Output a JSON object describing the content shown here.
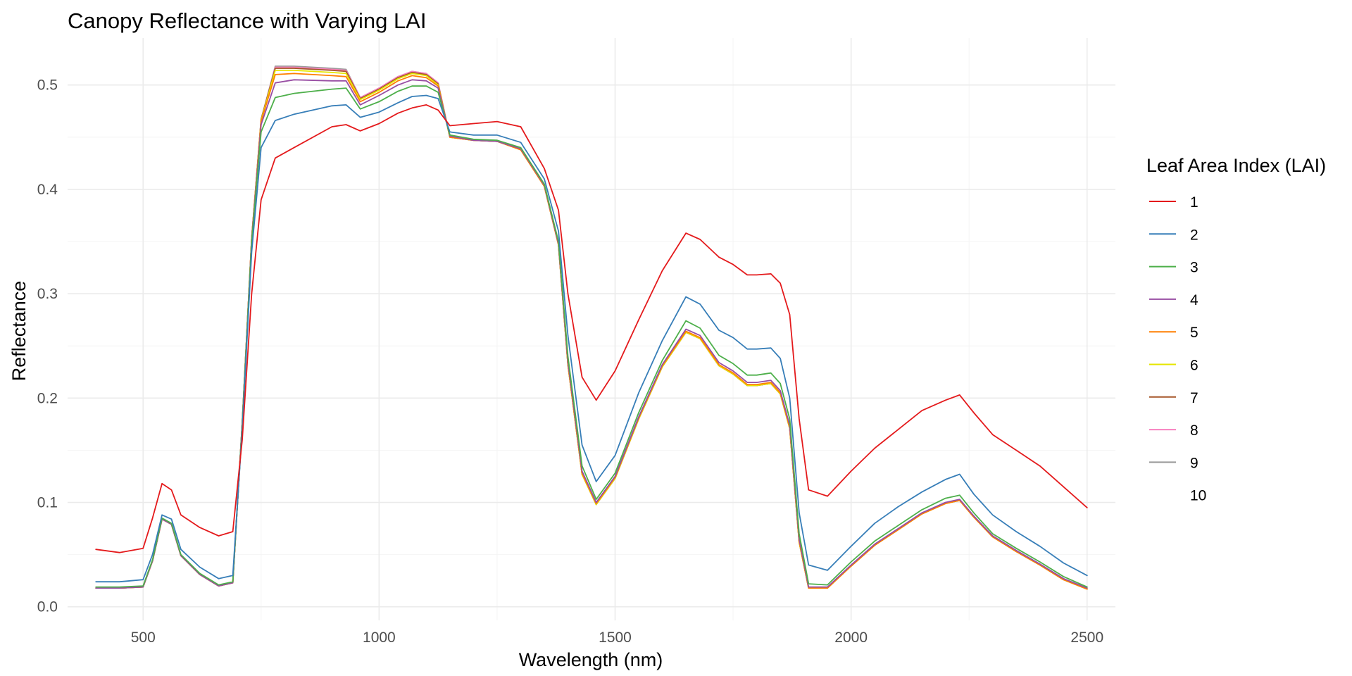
{
  "chart_data": {
    "type": "line",
    "title": "Canopy Reflectance with Varying LAI",
    "xlabel": "Wavelength (nm)",
    "ylabel": "Reflectance",
    "xlim": [
      340,
      2560
    ],
    "ylim": [
      -0.013,
      0.545
    ],
    "x_ticks": [
      500,
      1000,
      1500,
      2000,
      2500
    ],
    "x_tick_labels": [
      "500",
      "1000",
      "1500",
      "2000",
      "2500"
    ],
    "x_minor_ticks": [
      750,
      1250,
      1750,
      2250
    ],
    "y_ticks": [
      0.0,
      0.1,
      0.2,
      0.3,
      0.4,
      0.5
    ],
    "y_tick_labels": [
      "0.0",
      "0.1",
      "0.2",
      "0.3",
      "0.4",
      "0.5"
    ],
    "y_minor_ticks": [
      0.05,
      0.15,
      0.25,
      0.35,
      0.45
    ],
    "grid": true,
    "legend": {
      "title": "Leaf Area Index (LAI)",
      "position": "right"
    },
    "x": [
      400,
      450,
      500,
      520,
      540,
      560,
      580,
      620,
      660,
      690,
      710,
      730,
      750,
      780,
      820,
      900,
      930,
      960,
      1000,
      1040,
      1070,
      1100,
      1125,
      1150,
      1200,
      1250,
      1300,
      1350,
      1380,
      1400,
      1430,
      1460,
      1500,
      1550,
      1600,
      1650,
      1680,
      1720,
      1750,
      1780,
      1800,
      1830,
      1850,
      1870,
      1890,
      1910,
      1950,
      2000,
      2050,
      2100,
      2150,
      2200,
      2230,
      2260,
      2300,
      2350,
      2400,
      2450,
      2500
    ],
    "series": [
      {
        "name": "1",
        "color": "#e41a1c",
        "values": [
          0.055,
          0.052,
          0.056,
          0.085,
          0.118,
          0.112,
          0.088,
          0.076,
          0.068,
          0.072,
          0.16,
          0.3,
          0.39,
          0.43,
          0.44,
          0.46,
          0.462,
          0.456,
          0.463,
          0.473,
          0.478,
          0.481,
          0.476,
          0.461,
          0.463,
          0.465,
          0.46,
          0.42,
          0.38,
          0.3,
          0.22,
          0.198,
          0.226,
          0.275,
          0.322,
          0.358,
          0.352,
          0.335,
          0.328,
          0.318,
          0.318,
          0.319,
          0.31,
          0.28,
          0.18,
          0.112,
          0.106,
          0.13,
          0.152,
          0.17,
          0.188,
          0.198,
          0.203,
          0.186,
          0.165,
          0.15,
          0.135,
          0.115,
          0.095
        ]
      },
      {
        "name": "2",
        "color": "#377eb8",
        "values": [
          0.024,
          0.024,
          0.026,
          0.05,
          0.088,
          0.084,
          0.055,
          0.038,
          0.027,
          0.03,
          0.17,
          0.34,
          0.44,
          0.466,
          0.472,
          0.48,
          0.481,
          0.469,
          0.474,
          0.483,
          0.489,
          0.49,
          0.487,
          0.455,
          0.452,
          0.452,
          0.445,
          0.41,
          0.36,
          0.26,
          0.155,
          0.12,
          0.145,
          0.205,
          0.255,
          0.297,
          0.29,
          0.265,
          0.258,
          0.247,
          0.247,
          0.248,
          0.238,
          0.2,
          0.09,
          0.04,
          0.035,
          0.058,
          0.08,
          0.096,
          0.11,
          0.122,
          0.127,
          0.108,
          0.088,
          0.072,
          0.058,
          0.042,
          0.03
        ]
      },
      {
        "name": "3",
        "color": "#4daf4a",
        "values": [
          0.019,
          0.019,
          0.02,
          0.045,
          0.085,
          0.08,
          0.05,
          0.032,
          0.021,
          0.024,
          0.175,
          0.35,
          0.455,
          0.488,
          0.492,
          0.496,
          0.497,
          0.477,
          0.484,
          0.494,
          0.499,
          0.499,
          0.493,
          0.452,
          0.448,
          0.447,
          0.44,
          0.405,
          0.35,
          0.24,
          0.135,
          0.103,
          0.128,
          0.186,
          0.236,
          0.274,
          0.267,
          0.241,
          0.233,
          0.222,
          0.222,
          0.224,
          0.214,
          0.18,
          0.07,
          0.022,
          0.021,
          0.043,
          0.063,
          0.078,
          0.093,
          0.104,
          0.107,
          0.09,
          0.07,
          0.056,
          0.043,
          0.029,
          0.019
        ]
      },
      {
        "name": "4",
        "color": "#984ea3",
        "values": [
          0.018,
          0.018,
          0.019,
          0.044,
          0.084,
          0.079,
          0.049,
          0.031,
          0.02,
          0.023,
          0.176,
          0.352,
          0.462,
          0.502,
          0.505,
          0.504,
          0.504,
          0.481,
          0.49,
          0.5,
          0.505,
          0.504,
          0.497,
          0.451,
          0.447,
          0.446,
          0.439,
          0.404,
          0.348,
          0.235,
          0.13,
          0.1,
          0.125,
          0.182,
          0.232,
          0.266,
          0.26,
          0.234,
          0.226,
          0.215,
          0.215,
          0.217,
          0.207,
          0.174,
          0.065,
          0.019,
          0.019,
          0.04,
          0.06,
          0.075,
          0.09,
          0.1,
          0.103,
          0.087,
          0.068,
          0.054,
          0.041,
          0.027,
          0.018
        ]
      },
      {
        "name": "5",
        "color": "#ff7f00",
        "values": [
          0.018,
          0.018,
          0.019,
          0.044,
          0.084,
          0.079,
          0.049,
          0.031,
          0.02,
          0.023,
          0.176,
          0.353,
          0.465,
          0.51,
          0.511,
          0.509,
          0.508,
          0.484,
          0.493,
          0.504,
          0.509,
          0.507,
          0.499,
          0.45,
          0.447,
          0.446,
          0.438,
          0.403,
          0.347,
          0.233,
          0.128,
          0.099,
          0.124,
          0.181,
          0.231,
          0.264,
          0.258,
          0.232,
          0.224,
          0.213,
          0.213,
          0.215,
          0.205,
          0.172,
          0.063,
          0.018,
          0.018,
          0.039,
          0.059,
          0.074,
          0.089,
          0.099,
          0.102,
          0.086,
          0.067,
          0.053,
          0.04,
          0.026,
          0.017
        ]
      },
      {
        "name": "6",
        "color": "#e6e600",
        "values": [
          0.018,
          0.018,
          0.019,
          0.044,
          0.084,
          0.079,
          0.049,
          0.031,
          0.02,
          0.023,
          0.176,
          0.353,
          0.466,
          0.514,
          0.514,
          0.512,
          0.511,
          0.486,
          0.495,
          0.506,
          0.511,
          0.509,
          0.5,
          0.45,
          0.447,
          0.446,
          0.438,
          0.403,
          0.347,
          0.232,
          0.127,
          0.098,
          0.123,
          0.18,
          0.23,
          0.263,
          0.257,
          0.231,
          0.223,
          0.212,
          0.212,
          0.214,
          0.204,
          0.171,
          0.062,
          0.018,
          0.018,
          0.039,
          0.059,
          0.074,
          0.089,
          0.099,
          0.102,
          0.086,
          0.067,
          0.053,
          0.04,
          0.026,
          0.017
        ]
      },
      {
        "name": "7",
        "color": "#a65628",
        "values": [
          0.018,
          0.018,
          0.019,
          0.044,
          0.084,
          0.079,
          0.049,
          0.031,
          0.02,
          0.023,
          0.176,
          0.353,
          0.467,
          0.516,
          0.516,
          0.514,
          0.513,
          0.487,
          0.496,
          0.507,
          0.512,
          0.51,
          0.501,
          0.45,
          0.447,
          0.446,
          0.438,
          0.403,
          0.347,
          0.232,
          0.127,
          0.098,
          0.123,
          0.18,
          0.23,
          0.263,
          0.257,
          0.231,
          0.223,
          0.212,
          0.212,
          0.214,
          0.204,
          0.171,
          0.062,
          0.018,
          0.018,
          0.039,
          0.059,
          0.074,
          0.089,
          0.099,
          0.102,
          0.086,
          0.067,
          0.053,
          0.04,
          0.026,
          0.017
        ]
      },
      {
        "name": "8",
        "color": "#f781bf",
        "values": [
          0.018,
          0.018,
          0.019,
          0.044,
          0.084,
          0.079,
          0.049,
          0.031,
          0.02,
          0.023,
          0.176,
          0.353,
          0.467,
          0.517,
          0.517,
          0.515,
          0.514,
          0.488,
          0.497,
          0.508,
          0.513,
          0.511,
          0.502,
          0.45,
          0.447,
          0.446,
          0.438,
          0.403,
          0.347,
          0.232,
          0.127,
          0.098,
          0.123,
          0.18,
          0.23,
          0.263,
          0.257,
          0.231,
          0.223,
          0.212,
          0.212,
          0.214,
          0.204,
          0.171,
          0.062,
          0.018,
          0.018,
          0.039,
          0.059,
          0.074,
          0.089,
          0.099,
          0.102,
          0.086,
          0.067,
          0.053,
          0.04,
          0.026,
          0.017
        ]
      },
      {
        "name": "9",
        "color": "#999999",
        "values": [
          0.018,
          0.018,
          0.019,
          0.044,
          0.084,
          0.079,
          0.049,
          0.031,
          0.02,
          0.023,
          0.176,
          0.353,
          0.467,
          0.518,
          0.518,
          0.516,
          0.515,
          0.488,
          0.497,
          0.508,
          0.513,
          0.511,
          0.502,
          0.45,
          0.447,
          0.446,
          0.438,
          0.403,
          0.347,
          0.232,
          0.127,
          0.098,
          0.123,
          0.18,
          0.23,
          0.263,
          0.257,
          0.231,
          0.223,
          0.212,
          0.212,
          0.214,
          0.204,
          0.171,
          0.062,
          0.018,
          0.018,
          0.039,
          0.059,
          0.074,
          0.089,
          0.099,
          0.102,
          0.086,
          0.067,
          0.053,
          0.04,
          0.026,
          0.017
        ]
      },
      {
        "name": "10",
        "color": "#ffffff",
        "values": [
          0.018,
          0.018,
          0.019,
          0.044,
          0.084,
          0.079,
          0.049,
          0.031,
          0.02,
          0.023,
          0.176,
          0.353,
          0.467,
          0.519,
          0.519,
          0.517,
          0.516,
          0.489,
          0.498,
          0.509,
          0.514,
          0.512,
          0.503,
          0.45,
          0.447,
          0.446,
          0.438,
          0.403,
          0.347,
          0.232,
          0.127,
          0.098,
          0.123,
          0.18,
          0.23,
          0.263,
          0.257,
          0.231,
          0.223,
          0.212,
          0.212,
          0.214,
          0.204,
          0.171,
          0.062,
          0.018,
          0.018,
          0.039,
          0.059,
          0.074,
          0.089,
          0.099,
          0.102,
          0.086,
          0.067,
          0.053,
          0.04,
          0.026,
          0.017
        ]
      }
    ]
  }
}
